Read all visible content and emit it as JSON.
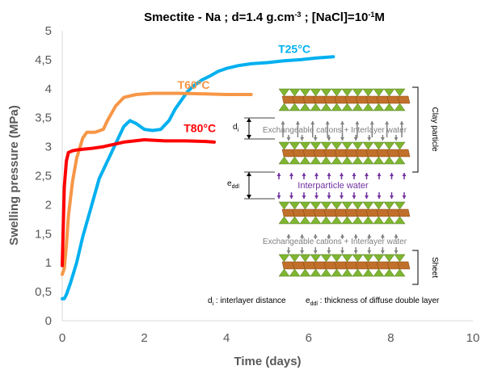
{
  "chart_data": {
    "type": "line",
    "title_parts": {
      "a": "Smectite - Na ; d=1.4 g.cm",
      "b": "-3",
      "c": " ; [NaCl]=10",
      "d": "-1",
      "e": "M"
    },
    "xlabel": "Time (days)",
    "ylabel": "Swelling pressure (MPa)",
    "xlim": [
      0,
      10
    ],
    "ylim": [
      0,
      5
    ],
    "xticks": [
      "0",
      "2",
      "4",
      "6",
      "8",
      "10"
    ],
    "yticks": [
      "0",
      "0,5",
      "1",
      "1,5",
      "2",
      "2,5",
      "3",
      "3,5",
      "4",
      "4,5",
      "5"
    ],
    "grid": false,
    "series": [
      {
        "name": "T25°C",
        "color": "#00b0f0",
        "x": [
          0,
          0.05,
          0.1,
          0.2,
          0.35,
          0.5,
          0.7,
          0.9,
          1.1,
          1.3,
          1.5,
          1.65,
          1.8,
          2.0,
          2.2,
          2.4,
          2.6,
          2.75,
          2.9,
          3.05,
          3.2,
          3.4,
          3.6,
          3.8,
          4.0,
          4.3,
          4.6,
          5.0,
          5.4,
          5.8,
          6.2,
          6.6
        ],
        "y": [
          0.38,
          0.38,
          0.45,
          0.65,
          1.0,
          1.45,
          1.95,
          2.45,
          2.75,
          3.05,
          3.35,
          3.45,
          3.4,
          3.3,
          3.28,
          3.3,
          3.45,
          3.65,
          3.8,
          3.95,
          4.05,
          4.15,
          4.22,
          4.3,
          4.35,
          4.4,
          4.43,
          4.45,
          4.48,
          4.5,
          4.53,
          4.55
        ]
      },
      {
        "name": "T60°C",
        "color": "#f79646",
        "x": [
          0,
          0.05,
          0.1,
          0.15,
          0.25,
          0.35,
          0.5,
          0.6,
          0.8,
          1.0,
          1.1,
          1.3,
          1.5,
          1.8,
          2.2,
          2.8,
          3.5,
          4.0,
          4.6
        ],
        "y": [
          0.8,
          0.9,
          1.3,
          1.8,
          2.4,
          2.8,
          3.15,
          3.25,
          3.25,
          3.3,
          3.45,
          3.7,
          3.85,
          3.9,
          3.92,
          3.92,
          3.91,
          3.9,
          3.9
        ]
      },
      {
        "name": "T80°C",
        "color": "#ff0000",
        "x": [
          0,
          0.02,
          0.05,
          0.1,
          0.15,
          0.25,
          0.4,
          0.7,
          1.0,
          1.5,
          2.0,
          2.5,
          3.0,
          3.5,
          3.7
        ],
        "y": [
          0.95,
          1.5,
          2.3,
          2.75,
          2.9,
          2.93,
          2.95,
          2.97,
          3.0,
          3.08,
          3.12,
          3.1,
          3.1,
          3.09,
          3.08
        ]
      }
    ]
  },
  "diagram": {
    "clay_particle_label": "Clay particle",
    "sheet_label": "Sheet",
    "exchangeable_label": "Exchangeable cations + Interlayer water",
    "interparticle_label": "Interparticle water",
    "di_symbol": "d",
    "di_sub": "i",
    "eddl_symbol": "e",
    "eddl_sub": "ddl",
    "legend_di_text": " : interlayer distance",
    "legend_eddl_text": " : thickness of diffuse double layer",
    "colors": {
      "tetrahedron": "#7fb531",
      "tetrahedron_dark": "#4f7a1a",
      "octahedron": "#c0702a",
      "cation_arrow": "#808080",
      "water_arrow": "#7030a0"
    }
  }
}
